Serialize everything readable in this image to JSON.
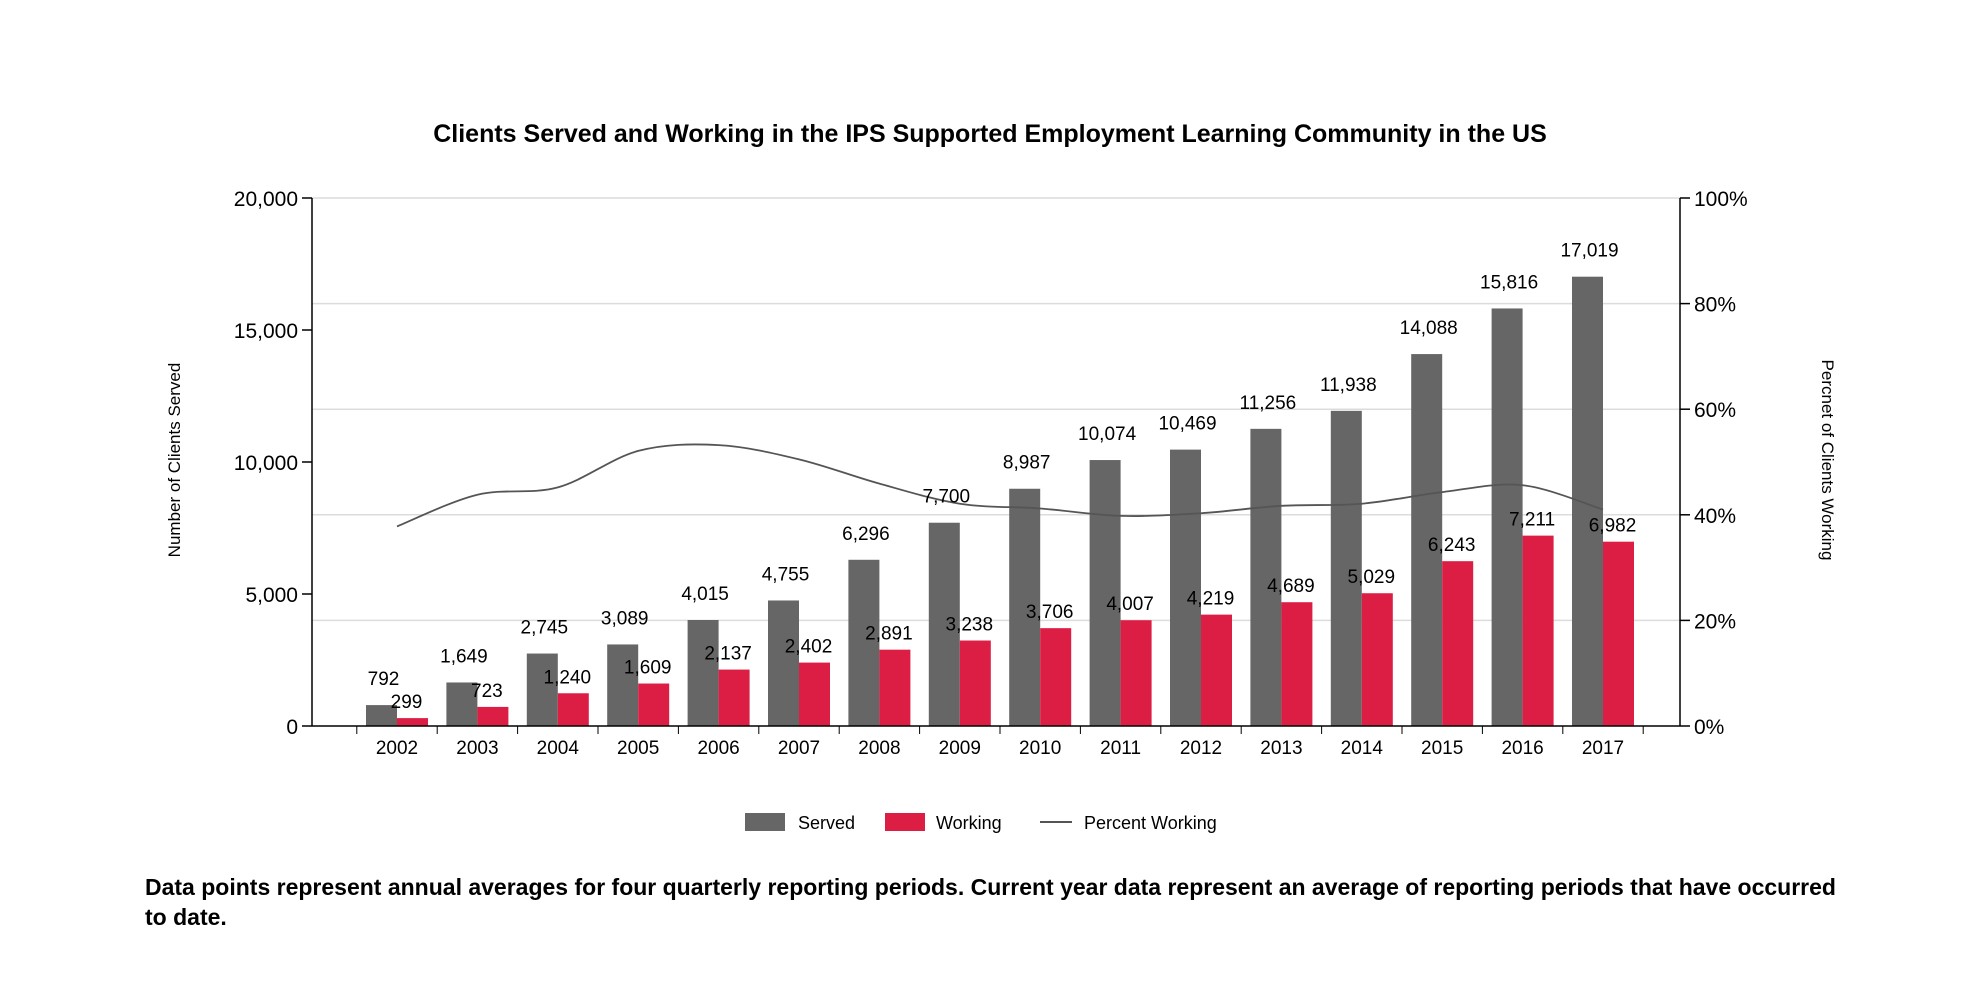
{
  "chart_data": {
    "type": "bar",
    "title": "Clients Served and Working in the IPS Supported Employment Learning Community in the US",
    "categories": [
      "2002",
      "2003",
      "2004",
      "2005",
      "2006",
      "2007",
      "2008",
      "2009",
      "2010",
      "2011",
      "2012",
      "2013",
      "2014",
      "2015",
      "2016",
      "2017"
    ],
    "series": [
      {
        "name": "Served",
        "type": "bar",
        "axis": "left",
        "color": "#666666",
        "values": [
          792,
          1649,
          2745,
          3089,
          4015,
          4755,
          6296,
          7700,
          8987,
          10074,
          10469,
          11256,
          11938,
          14088,
          15816,
          17019
        ],
        "labels": [
          "792",
          "1,649",
          "2,745",
          "3,089",
          "4,015",
          "4,755",
          "6,296",
          "7,700",
          "8,987",
          "10,074",
          "10,469",
          "11,256",
          "11,938",
          "14,088",
          "15,816",
          "17,019"
        ]
      },
      {
        "name": "Working",
        "type": "bar",
        "axis": "left",
        "color": "#dc1e44",
        "values": [
          299,
          723,
          1240,
          1609,
          2137,
          2402,
          2891,
          3238,
          3706,
          4007,
          4219,
          4689,
          5029,
          6243,
          7211,
          6982
        ],
        "labels": [
          "299",
          "723",
          "1,240",
          "1,609",
          "2,137",
          "2,402",
          "2,891",
          "3,238",
          "3,706",
          "4,007",
          "4,219",
          "4,689",
          "5,029",
          "6,243",
          "7,211",
          "6,982"
        ]
      },
      {
        "name": "Percent Working",
        "type": "line",
        "axis": "right",
        "color": "#555555",
        "values": [
          37.8,
          43.8,
          45.2,
          52.1,
          53.2,
          50.5,
          45.9,
          42.1,
          41.2,
          39.8,
          40.3,
          41.7,
          42.1,
          44.3,
          45.6,
          41.0
        ]
      }
    ],
    "y_left": {
      "label": "Number of Clients Served",
      "min": 0,
      "max": 20000,
      "ticks": [
        0,
        5000,
        10000,
        15000,
        20000
      ],
      "tick_labels": [
        "0",
        "5,000",
        "10,000",
        "15,000",
        "20,000"
      ]
    },
    "y_right": {
      "label": "Percnet of Clients Working",
      "min": 0,
      "max": 100,
      "ticks": [
        0,
        20,
        40,
        60,
        80,
        100
      ],
      "tick_labels": [
        "0%",
        "20%",
        "40%",
        "60%",
        "80%",
        "100%"
      ]
    },
    "grid": true,
    "legend": "bottom-center"
  },
  "note": "Data points represent annual averages for four quarterly reporting periods. Current year data represent an average of reporting periods that have occurred to date."
}
